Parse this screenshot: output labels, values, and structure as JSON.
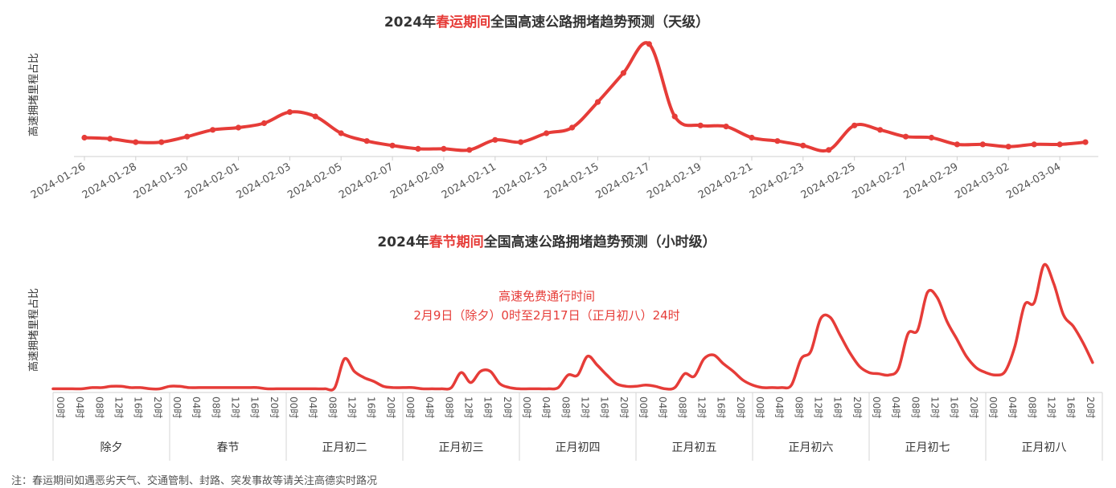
{
  "colors": {
    "accent": "#e63c38",
    "text": "#333333",
    "axis": "#bbbbbb",
    "tick_text": "#555555"
  },
  "chart_data": [
    {
      "type": "line",
      "title_prefix": "2024年",
      "title_highlight": "春运期间",
      "title_suffix": "全国高速公路拥堵趋势预测（天级）",
      "ylabel": "高速拥堵里程占比",
      "xlabel": "",
      "y_axis_labels": false,
      "ylim": [
        0,
        1
      ],
      "grid": false,
      "x_tick_labels": [
        "2024-01-26",
        "2024-01-28",
        "2024-01-30",
        "2024-02-01",
        "2024-02-03",
        "2024-02-05",
        "2024-02-07",
        "2024-02-09",
        "2024-02-11",
        "2024-02-13",
        "2024-02-15",
        "2024-02-17",
        "2024-02-19",
        "2024-02-21",
        "2024-02-23",
        "2024-02-25",
        "2024-02-27",
        "2024-02-29",
        "2024-03-02",
        "2024-03-04"
      ],
      "x": [
        "2024-01-26",
        "2024-01-27",
        "2024-01-28",
        "2024-01-29",
        "2024-01-30",
        "2024-01-31",
        "2024-02-01",
        "2024-02-02",
        "2024-02-03",
        "2024-02-04",
        "2024-02-05",
        "2024-02-06",
        "2024-02-07",
        "2024-02-08",
        "2024-02-09",
        "2024-02-10",
        "2024-02-11",
        "2024-02-12",
        "2024-02-13",
        "2024-02-14",
        "2024-02-15",
        "2024-02-16",
        "2024-02-17",
        "2024-02-18",
        "2024-02-19",
        "2024-02-20",
        "2024-02-21",
        "2024-02-22",
        "2024-02-23",
        "2024-02-24",
        "2024-02-25",
        "2024-02-26",
        "2024-02-27",
        "2024-02-28",
        "2024-02-29",
        "2024-03-01",
        "2024-03-02",
        "2024-03-03",
        "2024-03-04",
        "2024-03-05"
      ],
      "values": [
        0.14,
        0.13,
        0.1,
        0.1,
        0.15,
        0.21,
        0.23,
        0.27,
        0.37,
        0.33,
        0.18,
        0.11,
        0.07,
        0.04,
        0.04,
        0.03,
        0.12,
        0.1,
        0.18,
        0.23,
        0.46,
        0.72,
        0.98,
        0.33,
        0.25,
        0.24,
        0.14,
        0.11,
        0.07,
        0.03,
        0.25,
        0.21,
        0.15,
        0.14,
        0.08,
        0.08,
        0.06,
        0.08,
        0.08,
        0.1
      ]
    },
    {
      "type": "line",
      "title_prefix": "2024年",
      "title_highlight": "春节期间",
      "title_suffix": "全国高速公路拥堵趋势预测（小时级）",
      "ylabel": "高速拥堵里程占比",
      "xlabel": "",
      "y_axis_labels": false,
      "ylim": [
        0,
        1
      ],
      "grid": false,
      "annotation": [
        "高速免费通行时间",
        "2月9日（除夕）0时至2月17日（正月初八）24时"
      ],
      "hour_ticks": [
        "00时",
        "04时",
        "08时",
        "12时",
        "16时",
        "20时"
      ],
      "day_labels": [
        "除夕",
        "春节",
        "正月初二",
        "正月初三",
        "正月初四",
        "正月初五",
        "正月初六",
        "正月初七",
        "正月初八"
      ],
      "x_step_hours": 2,
      "values": [
        0.01,
        0.01,
        0.01,
        0.01,
        0.02,
        0.02,
        0.03,
        0.03,
        0.02,
        0.02,
        0.01,
        0.01,
        0.03,
        0.03,
        0.02,
        0.02,
        0.02,
        0.02,
        0.02,
        0.02,
        0.02,
        0.02,
        0.01,
        0.01,
        0.01,
        0.01,
        0.01,
        0.01,
        0.01,
        0.02,
        0.25,
        0.15,
        0.1,
        0.07,
        0.03,
        0.02,
        0.02,
        0.02,
        0.01,
        0.01,
        0.01,
        0.02,
        0.14,
        0.06,
        0.15,
        0.15,
        0.05,
        0.02,
        0.01,
        0.01,
        0.01,
        0.01,
        0.02,
        0.12,
        0.12,
        0.27,
        0.2,
        0.12,
        0.05,
        0.03,
        0.03,
        0.04,
        0.03,
        0.01,
        0.02,
        0.13,
        0.11,
        0.25,
        0.28,
        0.21,
        0.15,
        0.08,
        0.04,
        0.02,
        0.02,
        0.02,
        0.04,
        0.25,
        0.31,
        0.57,
        0.58,
        0.44,
        0.3,
        0.19,
        0.14,
        0.13,
        0.12,
        0.17,
        0.45,
        0.48,
        0.78,
        0.74,
        0.55,
        0.41,
        0.27,
        0.18,
        0.14,
        0.12,
        0.15,
        0.35,
        0.68,
        0.7,
        1.0,
        0.85,
        0.6,
        0.51,
        0.38,
        0.22
      ]
    }
  ],
  "footnote": "注：春运期间如遇恶劣天气、交通管制、封路、突发事故等请关注高德实时路况"
}
